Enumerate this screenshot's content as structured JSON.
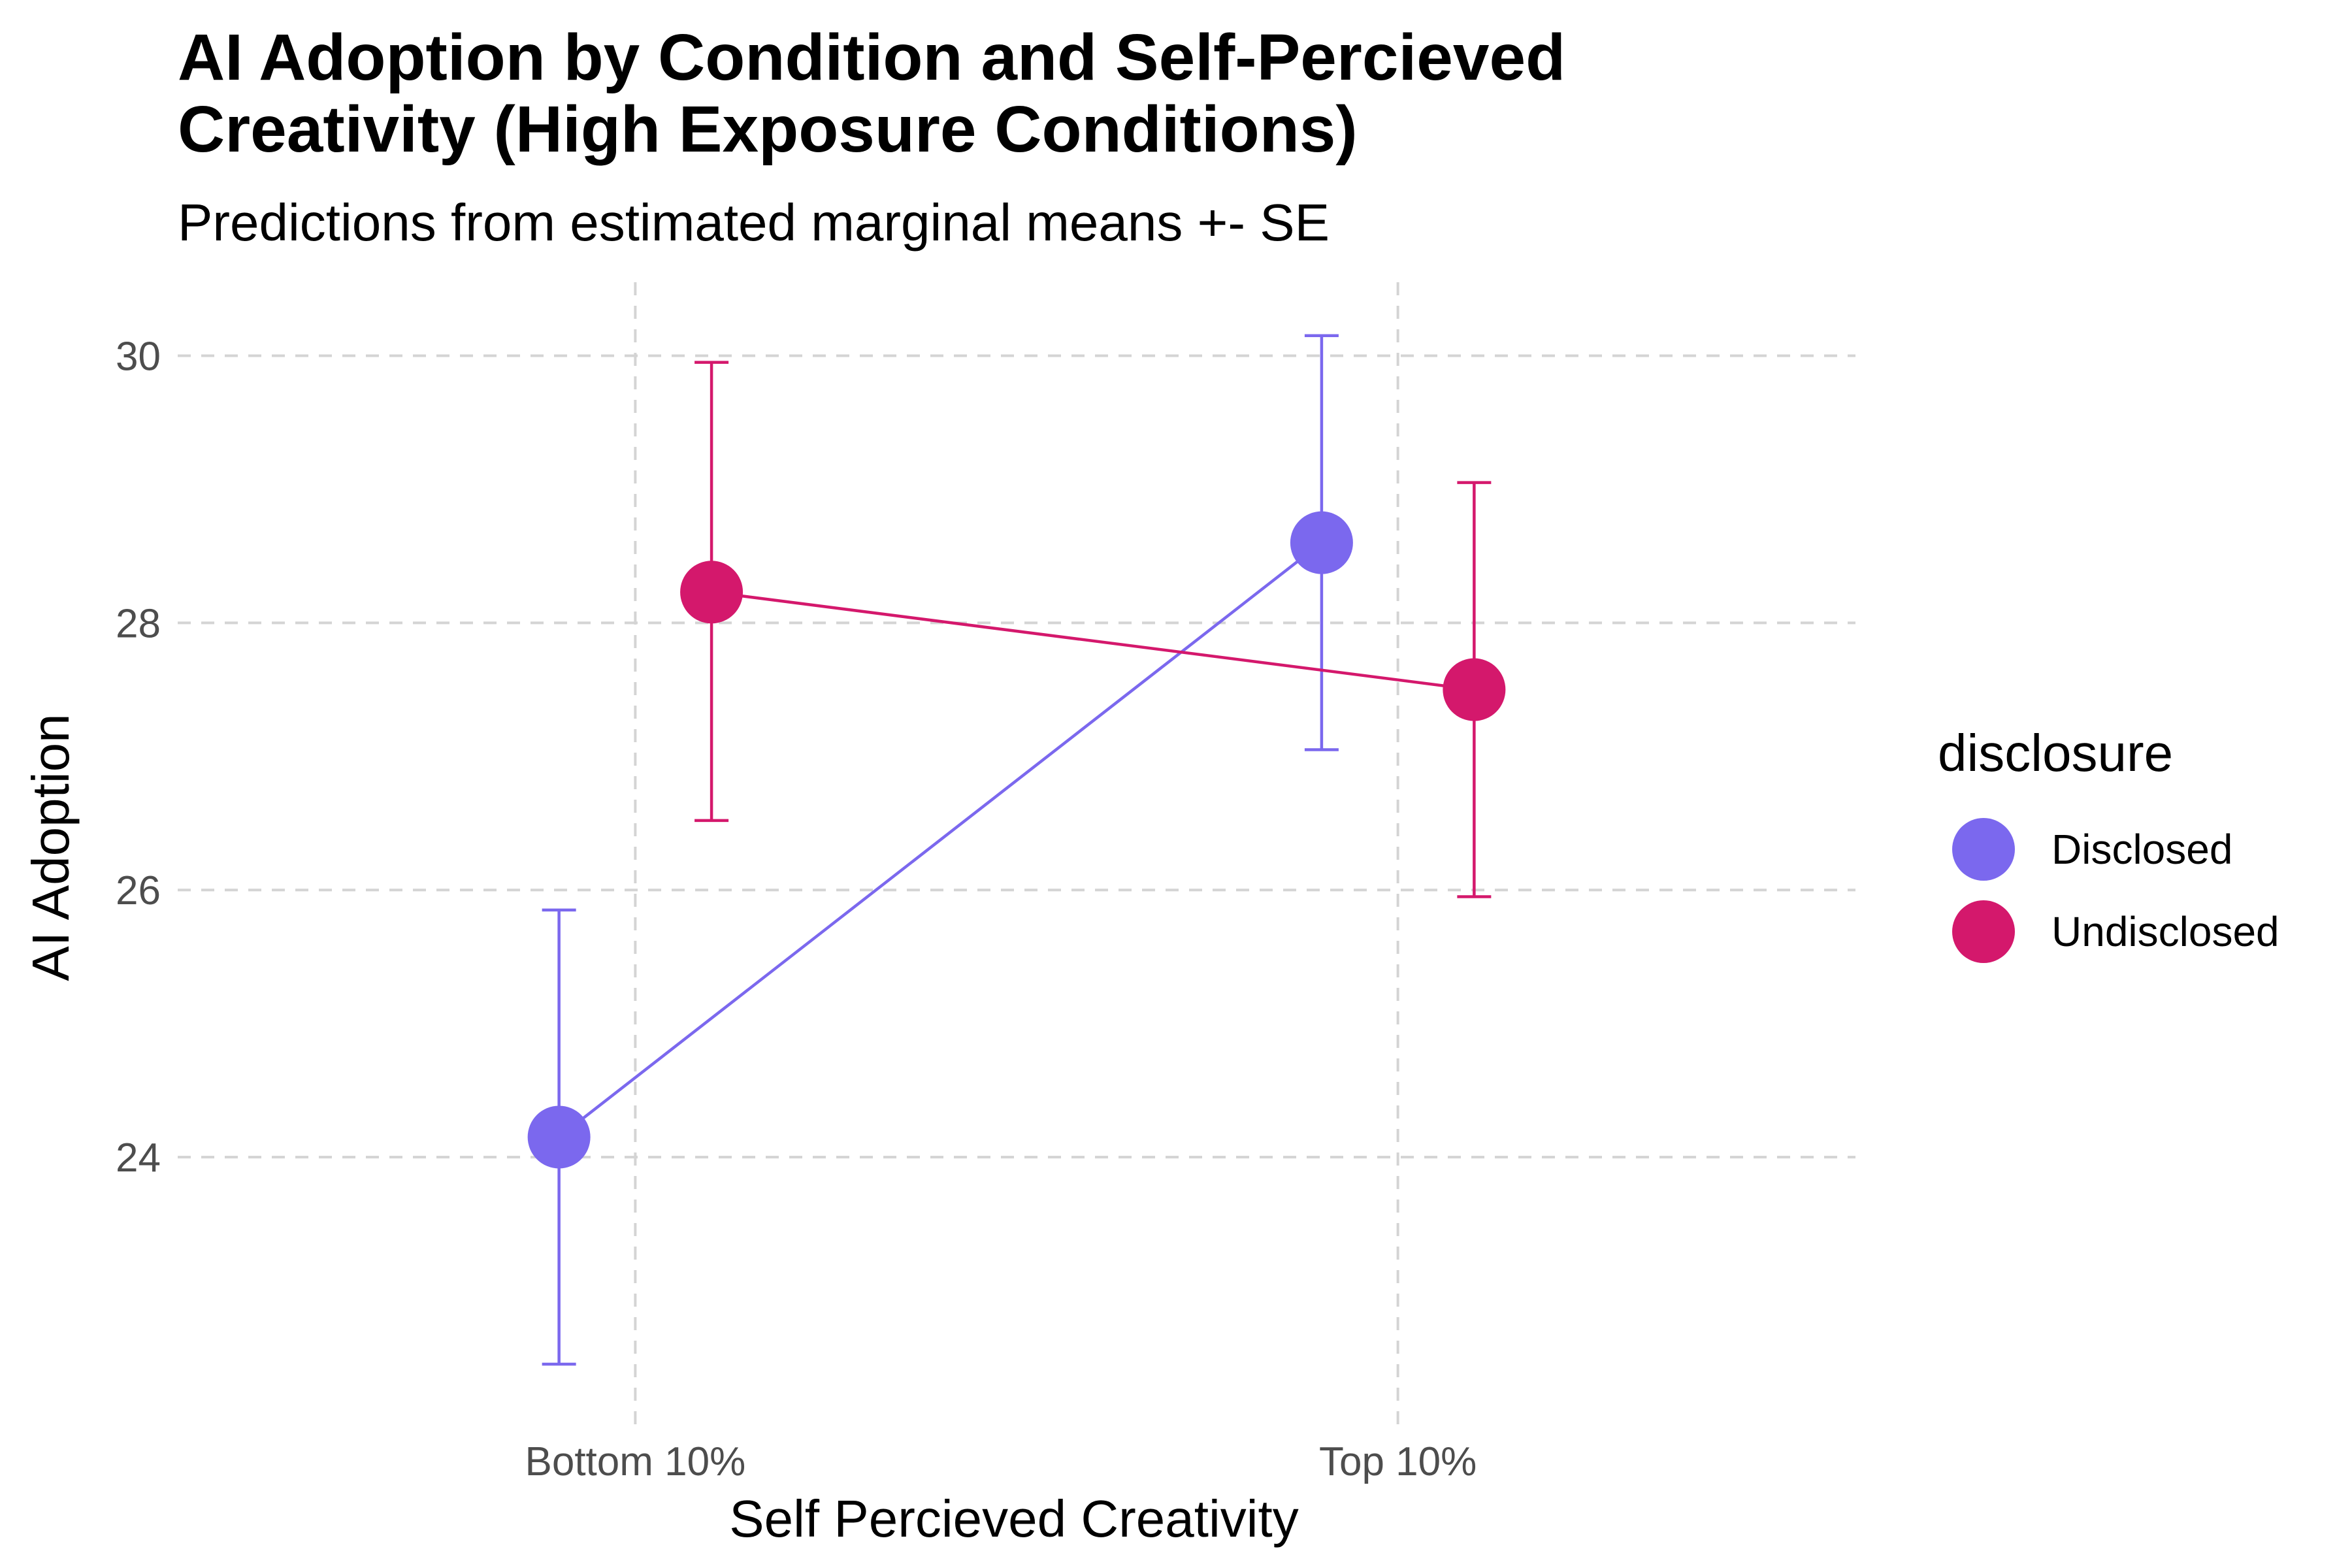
{
  "chart_data": {
    "type": "line",
    "title_lines": [
      "AI Adoption by Condition and Self-Percieved",
      "Creativity (High Exposure Conditions)"
    ],
    "subtitle": "Predictions from estimated marginal means +- SE",
    "xlabel": "Self Percieved Creativity",
    "ylabel": "AI Adoption",
    "categories": [
      "Bottom 10%",
      "Top 10%"
    ],
    "ylim": [
      22.0,
      30.55
    ],
    "yticks": [
      24,
      26,
      28,
      30
    ],
    "y_tick_labels": [
      "24",
      "26",
      "28",
      "30"
    ],
    "grid": true,
    "legend": {
      "title": "disclosure",
      "placement": "right"
    },
    "dodge": 0.2,
    "series": [
      {
        "name": "Disclosed",
        "color": "#7b68ee",
        "values": [
          24.15,
          28.6
        ],
        "se_low": [
          22.45,
          27.05
        ],
        "se_high": [
          25.85,
          30.15
        ]
      },
      {
        "name": "Undisclosed",
        "color": "#d4186c",
        "values": [
          28.23,
          27.5
        ],
        "se_low": [
          26.52,
          25.95
        ],
        "se_high": [
          29.95,
          29.05
        ]
      }
    ]
  }
}
